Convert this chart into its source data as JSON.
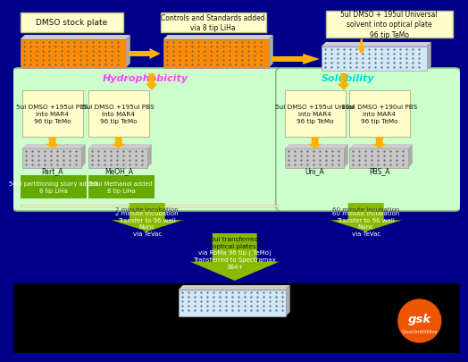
{
  "bg_top_color": "#00008B",
  "bg_bottom_color": "#000000",
  "yellow_box_color": "#FFFFCC",
  "yellow_box_edge": "#BBBB88",
  "orange_plate_color": "#FF8C00",
  "light_blue_plate_color": "#D0E8F8",
  "green_section_bg": "#CCFFCC",
  "green_section_edge": "#88BB88",
  "yellow_section_bg": "#FFFFCC",
  "bright_green": "#88BB00",
  "yellow_arrow": "#FFB300",
  "green_box_color": "#66AA00",
  "magenta_text": "#FF44FF",
  "cyan_text": "#00DDDD",
  "white_text": "#FFFFFF",
  "black_text": "#111111",
  "dmso_label": "DMSO stock plate",
  "controls_label": "Controls and Standards added\nvia 8 tip LiHa",
  "top_right_label": "5ul DMSO + 195ul Universal\nsolvent into optical plate\n96 tip TeMo",
  "box1_label": "5ul DMSO +195ul PBS\ninto MAR4\n96 tip TeMo",
  "box2_label": "5ul DMSO +195ul PBS\ninto MAR4\n96 tip TeMo",
  "box3_label": "5ul DMSO +195ul Unisol\ninto MAR4\n96 tip TeMo",
  "box4_label": "10ul DMSO +190ul PBS\ninto MAR4\n96 tip TeMo",
  "hydro_label": "Hydrophobicity",
  "sol_label": "Solubility",
  "part_a": "Part_A",
  "meoh_a": "MeOH_A",
  "uni_a": "Uni_A",
  "pbs_a": "PBS_A",
  "green1_label": "50ul partitioning slurry added\n8 tip LiHa",
  "green2_label": "50ul Methanol added\n8 tip LiHa",
  "hydro_incub": "2 minute Incubation\nTransfer to 96 well\nNunc\nvia TeVac",
  "sol_incub": "60 minute Incubation\nTransfer to 96 well\nNunc\nvia TeVac",
  "center_top_label": "150ul transferred to\noptical plates",
  "center_bot_label": "via RoMa 96 tip ( TeMo)\nTransferred to Spectramax\n384+",
  "gsk_orange": "#EE5500"
}
